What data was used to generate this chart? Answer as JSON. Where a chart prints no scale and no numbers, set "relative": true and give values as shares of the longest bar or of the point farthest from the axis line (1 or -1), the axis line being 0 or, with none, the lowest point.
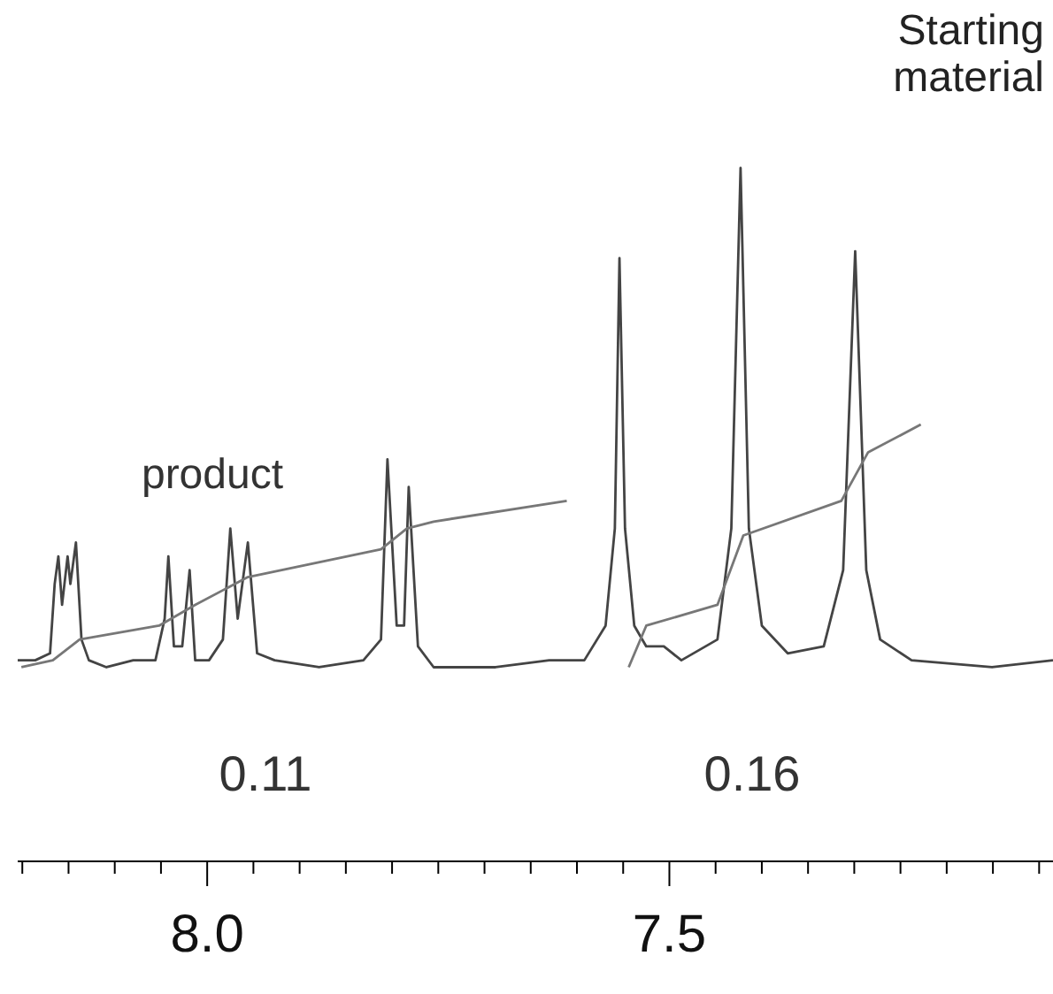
{
  "chart_data": {
    "type": "line",
    "relative": true,
    "marker": "none",
    "tick_labels": "x",
    "xlim": [
      8.205,
      7.085
    ],
    "xticks": [
      {
        "value": 8.2,
        "label": null
      },
      {
        "value": 8.15,
        "label": null
      },
      {
        "value": 8.1,
        "label": null
      },
      {
        "value": 8.05,
        "label": null
      },
      {
        "value": 8.0,
        "label": "8.0"
      },
      {
        "value": 7.95,
        "label": null
      },
      {
        "value": 7.9,
        "label": null
      },
      {
        "value": 7.85,
        "label": null
      },
      {
        "value": 7.8,
        "label": null
      },
      {
        "value": 7.75,
        "label": null
      },
      {
        "value": 7.7,
        "label": null
      },
      {
        "value": 7.65,
        "label": null
      },
      {
        "value": 7.6,
        "label": null
      },
      {
        "value": 7.55,
        "label": null
      },
      {
        "value": 7.5,
        "label": "7.5"
      },
      {
        "value": 7.45,
        "label": null
      },
      {
        "value": 7.4,
        "label": null
      },
      {
        "value": 7.35,
        "label": null
      },
      {
        "value": 7.3,
        "label": null
      },
      {
        "value": 7.25,
        "label": null
      },
      {
        "value": 7.2,
        "label": null
      },
      {
        "value": 7.15,
        "label": null
      },
      {
        "value": 7.1,
        "label": null
      }
    ],
    "series": [
      {
        "color": "#444444",
        "x": [
          8.205,
          8.186,
          8.17,
          8.165,
          8.161,
          8.157,
          8.151,
          8.148,
          8.142,
          8.136,
          8.128,
          8.109,
          8.08,
          8.056,
          8.046,
          8.042,
          8.036,
          8.027,
          8.019,
          8.013,
          7.998,
          7.983,
          7.975,
          7.967,
          7.956,
          7.946,
          7.927,
          7.879,
          7.831,
          7.812,
          7.805,
          7.795,
          7.787,
          7.782,
          7.772,
          7.755,
          7.688,
          7.63,
          7.592,
          7.569,
          7.559,
          7.554,
          7.548,
          7.538,
          7.525,
          7.506,
          7.487,
          7.448,
          7.433,
          7.423,
          7.414,
          7.4,
          7.372,
          7.333,
          7.312,
          7.299,
          7.287,
          7.272,
          7.238,
          7.151,
          7.085
        ],
        "values": [
          0.29,
          0.29,
          0.3,
          0.4,
          0.44,
          0.37,
          0.44,
          0.4,
          0.46,
          0.32,
          0.29,
          0.28,
          0.29,
          0.29,
          0.35,
          0.44,
          0.31,
          0.31,
          0.42,
          0.29,
          0.29,
          0.32,
          0.48,
          0.35,
          0.46,
          0.3,
          0.29,
          0.28,
          0.29,
          0.32,
          0.58,
          0.34,
          0.34,
          0.54,
          0.31,
          0.28,
          0.28,
          0.29,
          0.29,
          0.34,
          0.48,
          0.87,
          0.48,
          0.34,
          0.31,
          0.31,
          0.29,
          0.32,
          0.48,
          1.0,
          0.48,
          0.34,
          0.3,
          0.31,
          0.42,
          0.88,
          0.42,
          0.32,
          0.29,
          0.28,
          0.29
        ]
      },
      {
        "color": "#777777",
        "x": [
          8.201,
          8.167,
          8.138,
          8.052,
          8.013,
          7.956,
          7.812,
          7.784,
          7.755,
          7.611
        ],
        "values": [
          0.28,
          0.29,
          0.32,
          0.34,
          0.37,
          0.41,
          0.45,
          0.48,
          0.49,
          0.52
        ]
      },
      {
        "color": "#777777",
        "x": [
          7.544,
          7.525,
          7.448,
          7.42,
          7.314,
          7.285,
          7.228
        ],
        "values": [
          0.28,
          0.34,
          0.37,
          0.47,
          0.52,
          0.59,
          0.63
        ]
      }
    ],
    "annotations": [
      "product",
      "Starting material",
      "0.11",
      "0.16"
    ]
  }
}
